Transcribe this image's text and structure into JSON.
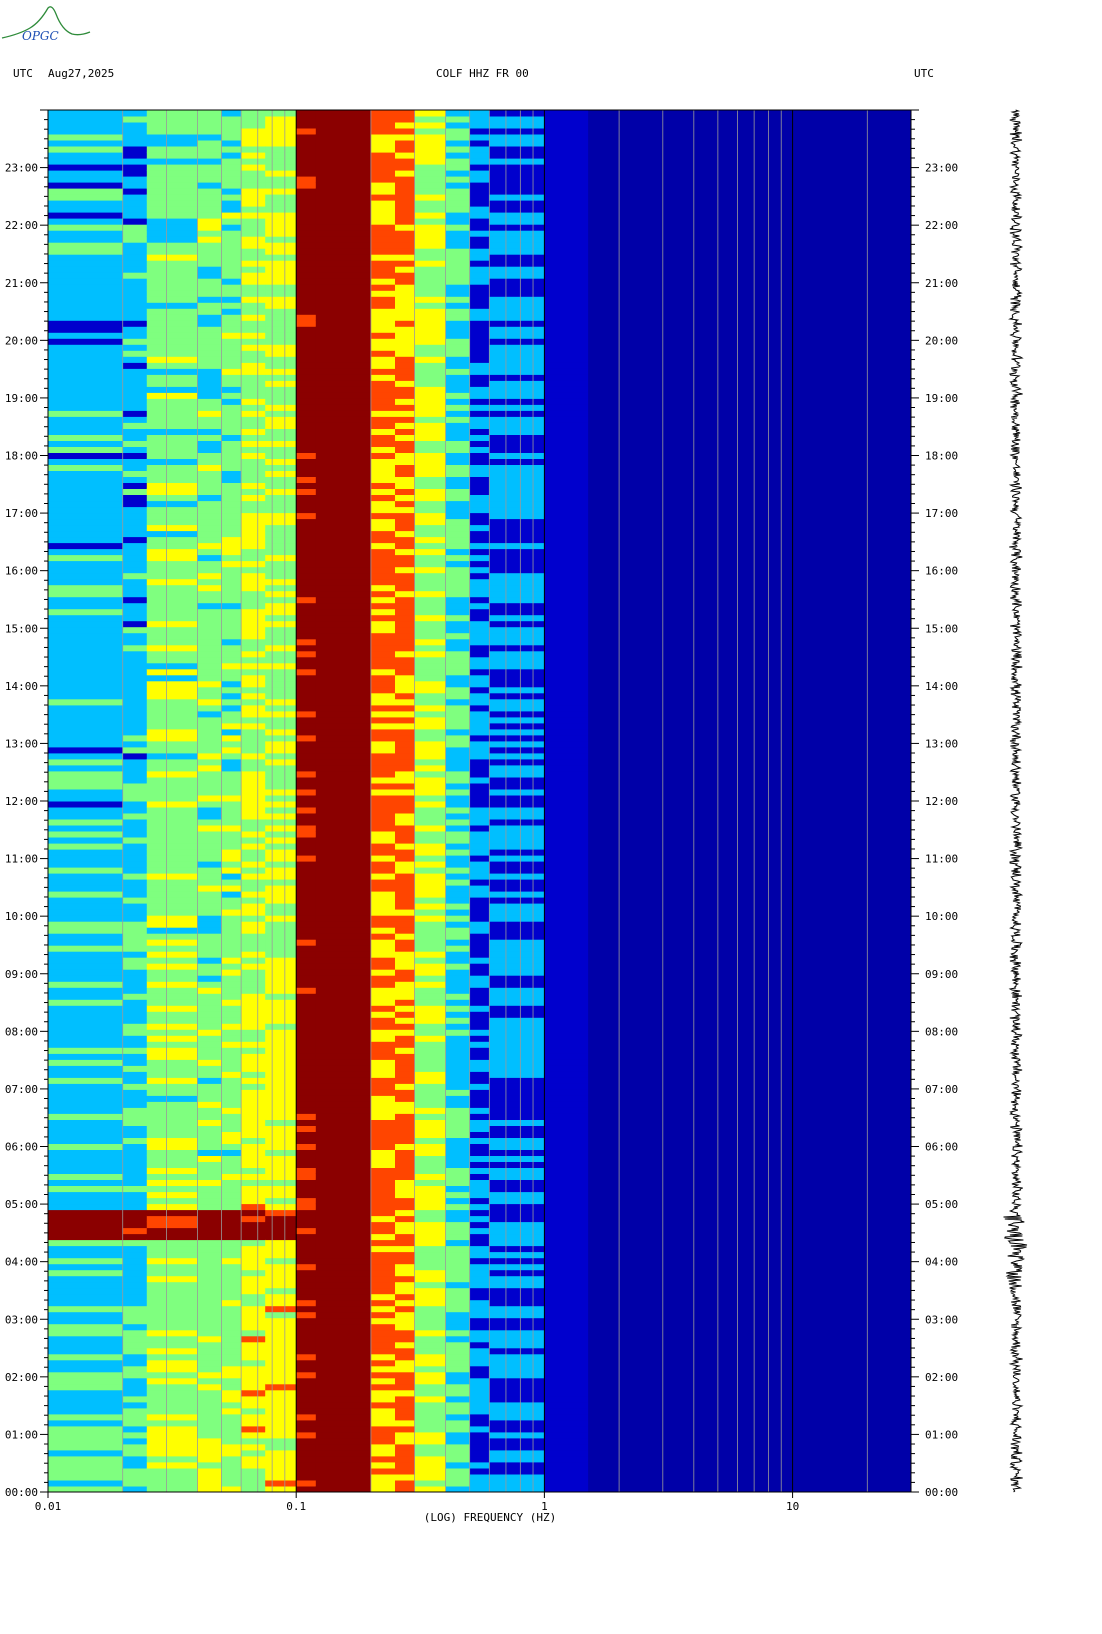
{
  "header": {
    "left_tz": "UTC",
    "date": "Aug27,2025",
    "station": "COLF HHZ FR 00",
    "right_tz": "UTC"
  },
  "logo": {
    "text": "OPGC",
    "color": "#2e8b3a"
  },
  "colors": {
    "background": "#00008B",
    "low": "#0000CD",
    "mid_low": "#00BFFF",
    "mid": "#7FFF7F",
    "mid_high": "#FFFF00",
    "high": "#FF4500",
    "saturated": "#8B0000"
  },
  "chart_data": {
    "type": "heatmap",
    "title": "COLF HHZ FR 00",
    "xlabel": "(LOG) FREQUENCY (HZ)",
    "x_scale": "log",
    "xlim": [
      0.01,
      30
    ],
    "x_tick_labels": [
      "0.01",
      "0.1",
      "1",
      "10"
    ],
    "x_ticks": [
      0.01,
      0.1,
      1,
      10
    ],
    "ylabel": "UTC",
    "ylim": [
      "00:00",
      "24:00"
    ],
    "y_tick_labels": [
      "00:00",
      "01:00",
      "02:00",
      "03:00",
      "04:00",
      "05:00",
      "06:00",
      "07:00",
      "08:00",
      "09:00",
      "10:00",
      "11:00",
      "12:00",
      "13:00",
      "14:00",
      "15:00",
      "16:00",
      "17:00",
      "18:00",
      "19:00",
      "20:00",
      "21:00",
      "22:00",
      "23:00"
    ],
    "microseism_band_hz": [
      0.1,
      0.3
    ],
    "notable_events_utc": [
      "04:00",
      "04:40"
    ],
    "seismogram_trace": true
  }
}
